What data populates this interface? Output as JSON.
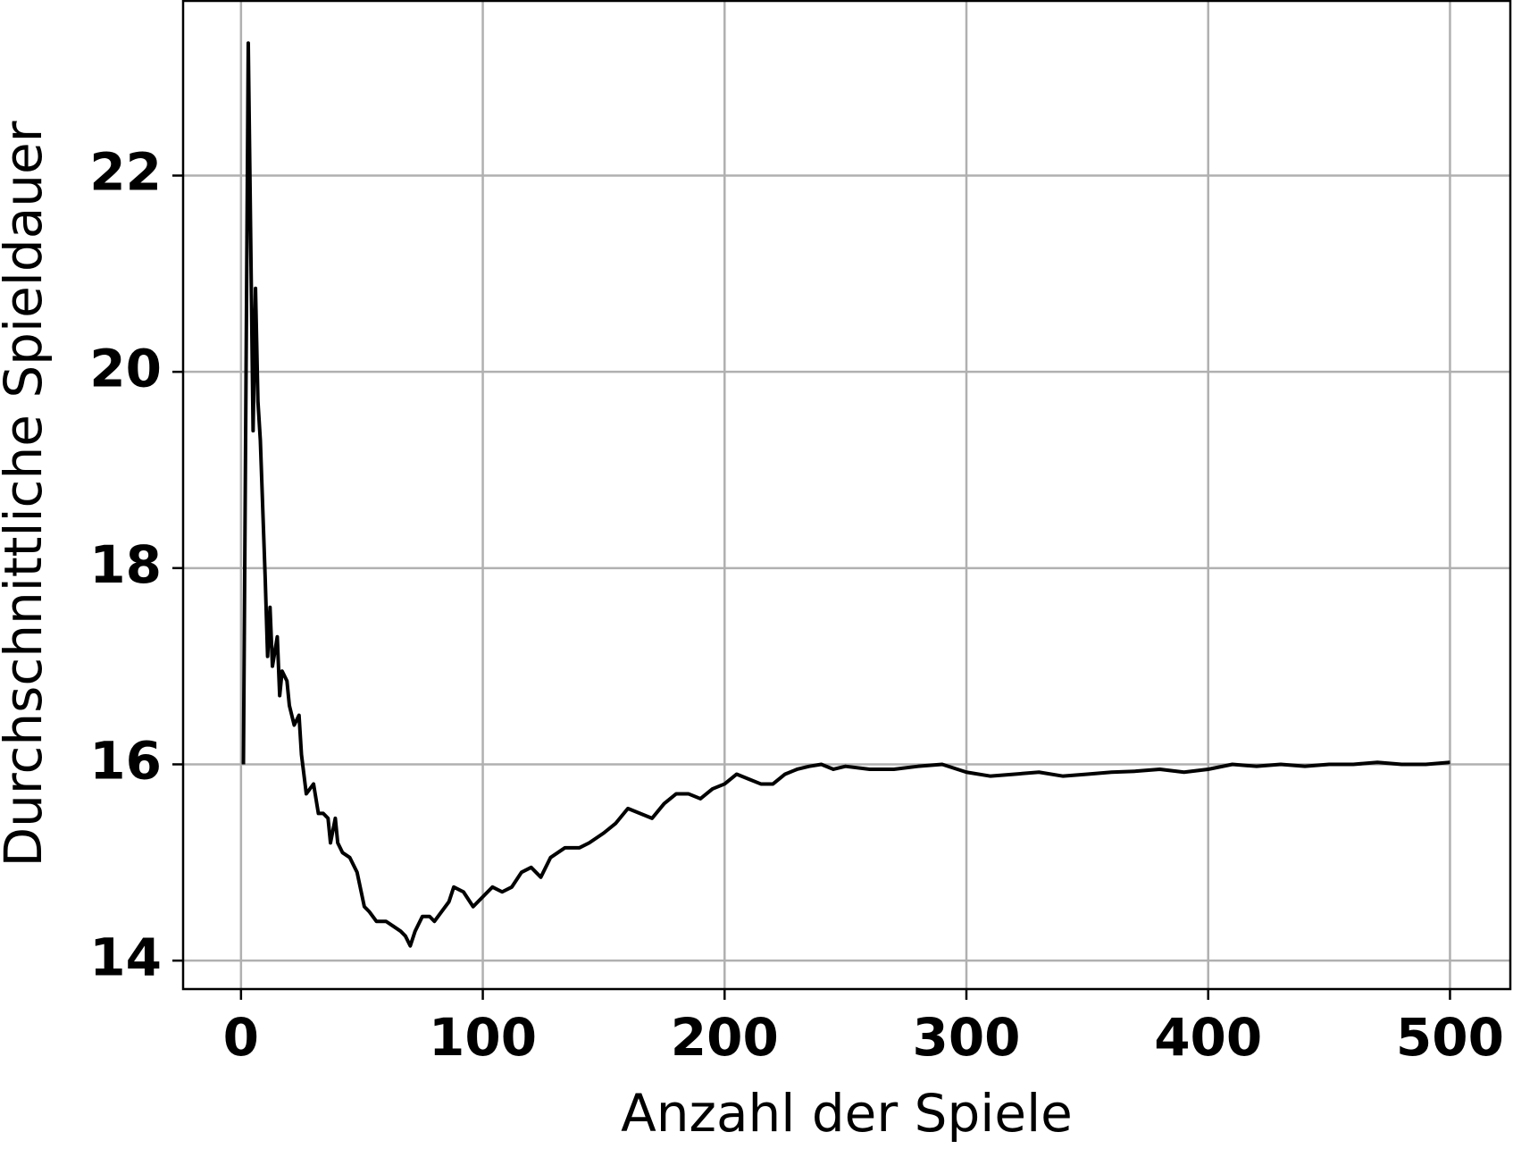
{
  "chart_data": {
    "type": "line",
    "x_label": "Anzahl der Spiele",
    "y_label": "Durchschnittliche Spieldauer",
    "xlim": [
      -23.95,
      524.95
    ],
    "ylim": [
      13.71,
      23.78
    ],
    "xticks": [
      0,
      100,
      200,
      300,
      400,
      500
    ],
    "yticks": [
      14,
      16,
      18,
      20,
      22
    ],
    "grid": true,
    "series": [
      {
        "color": "#000000",
        "x": [
          1,
          3,
          5,
          6,
          7,
          8,
          10,
          11,
          12,
          13,
          15,
          16,
          17,
          19,
          20,
          22,
          24,
          25,
          27,
          30,
          32,
          34,
          36,
          37,
          39,
          40,
          42,
          45,
          48,
          51,
          53,
          56,
          60,
          63,
          66,
          68,
          70,
          72,
          75,
          78,
          80,
          83,
          86,
          88,
          92,
          96,
          100,
          104,
          108,
          112,
          116,
          120,
          124,
          128,
          134,
          140,
          144,
          150,
          155,
          160,
          165,
          170,
          175,
          180,
          185,
          190,
          195,
          200,
          205,
          210,
          215,
          220,
          225,
          230,
          235,
          240,
          245,
          250,
          260,
          270,
          280,
          290,
          300,
          310,
          320,
          330,
          340,
          350,
          360,
          370,
          380,
          390,
          400,
          410,
          420,
          430,
          440,
          450,
          460,
          470,
          480,
          490,
          500
        ],
        "values": [
          16.0,
          23.35,
          19.4,
          20.85,
          19.7,
          19.3,
          17.9,
          17.1,
          17.6,
          17.0,
          17.3,
          16.7,
          16.95,
          16.85,
          16.6,
          16.4,
          16.5,
          16.1,
          15.7,
          15.8,
          15.5,
          15.5,
          15.45,
          15.2,
          15.45,
          15.2,
          15.1,
          15.05,
          14.9,
          14.55,
          14.5,
          14.4,
          14.4,
          14.35,
          14.3,
          14.25,
          14.15,
          14.3,
          14.45,
          14.45,
          14.4,
          14.5,
          14.6,
          14.75,
          14.7,
          14.55,
          14.65,
          14.75,
          14.7,
          14.75,
          14.9,
          14.95,
          14.85,
          15.05,
          15.15,
          15.15,
          15.2,
          15.3,
          15.4,
          15.55,
          15.5,
          15.45,
          15.6,
          15.7,
          15.7,
          15.65,
          15.75,
          15.8,
          15.9,
          15.85,
          15.8,
          15.8,
          15.9,
          15.95,
          15.98,
          16.0,
          15.95,
          15.98,
          15.95,
          15.95,
          15.98,
          16.0,
          15.92,
          15.88,
          15.9,
          15.92,
          15.88,
          15.9,
          15.92,
          15.93,
          15.95,
          15.92,
          15.95,
          16.0,
          15.98,
          16.0,
          15.98,
          16.0,
          16.0,
          16.02,
          16.0,
          16.0,
          16.02
        ]
      }
    ]
  }
}
